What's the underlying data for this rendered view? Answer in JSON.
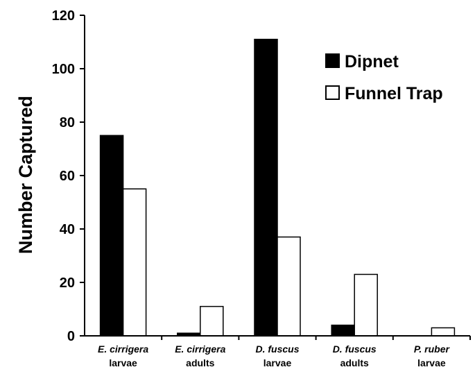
{
  "chart_data": {
    "type": "bar",
    "ylabel": "Number Captured",
    "xlabel": "",
    "ylim": [
      0,
      120
    ],
    "yticks": [
      "0",
      "20",
      "40",
      "60",
      "80",
      "100",
      "120"
    ],
    "categories": [
      {
        "line1": "E. cirrigera",
        "line2": "larvae"
      },
      {
        "line1": "E. cirrigera",
        "line2": "adults"
      },
      {
        "line1": "D. fuscus",
        "line2": "larvae"
      },
      {
        "line1": "D. fuscus",
        "line2": "adults"
      },
      {
        "line1": "P. ruber",
        "line2": "larvae"
      }
    ],
    "series": [
      {
        "name": "Dipnet",
        "color": "#000000",
        "values": [
          75,
          1,
          111,
          4,
          0
        ]
      },
      {
        "name": "Funnel Trap",
        "color": "#ffffff",
        "values": [
          55,
          11,
          37,
          23,
          3
        ]
      }
    ],
    "grid": false,
    "legend_position": "top-right"
  }
}
